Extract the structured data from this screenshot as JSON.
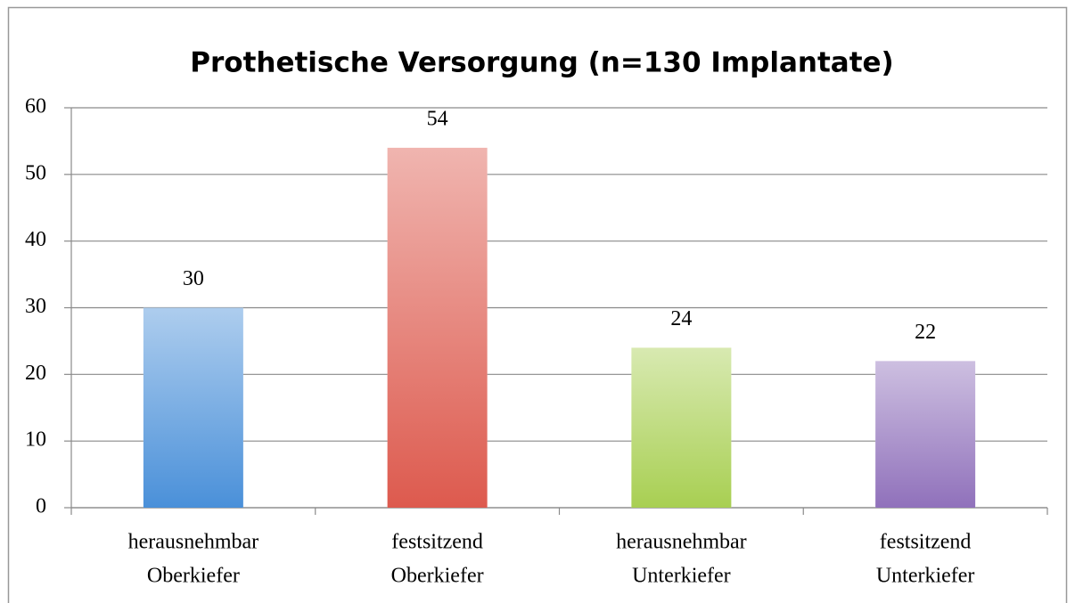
{
  "chart_data": {
    "type": "bar",
    "title": "Prothetische Versorgung (n=130 Implantate)",
    "categories": [
      [
        "herausnehmbar",
        "Oberkiefer"
      ],
      [
        "festsitzend",
        "Oberkiefer"
      ],
      [
        "herausnehmbar",
        "Unterkiefer"
      ],
      [
        "festsitzend",
        "Unterkiefer"
      ]
    ],
    "values": [
      30,
      54,
      24,
      22
    ],
    "colors": [
      "#4a90d9",
      "#dd5a4e",
      "#a8cf52",
      "#9071bb"
    ],
    "ylim": [
      0,
      60
    ],
    "yticks": [
      0,
      10,
      20,
      30,
      40,
      50,
      60
    ],
    "grid": true
  }
}
